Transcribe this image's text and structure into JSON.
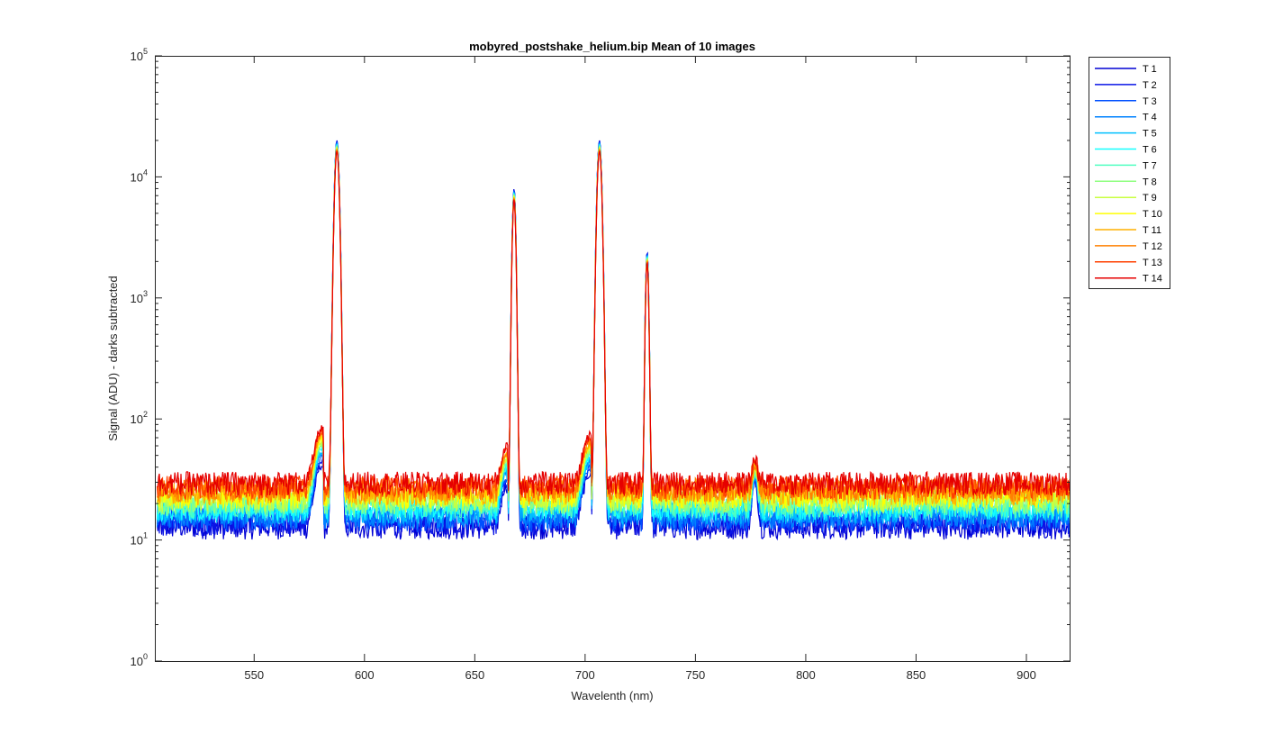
{
  "chart_data": {
    "type": "line",
    "title": "mobyred_postshake_helium.bip  Mean of 10 images",
    "xlabel": "Wavelenth (nm)",
    "ylabel": "Signal (ADU) - darks subtracted",
    "xlim": [
      505,
      920
    ],
    "ylim": [
      1,
      100000
    ],
    "yscale": "log",
    "grid": false,
    "legend_position": "outside-right",
    "x_ticks": [
      550,
      600,
      650,
      700,
      750,
      800,
      850,
      900
    ],
    "y_ticks": [
      {
        "value": 1,
        "base": "10",
        "exp": "0"
      },
      {
        "value": 10,
        "base": "10",
        "exp": "1"
      },
      {
        "value": 100,
        "base": "10",
        "exp": "2"
      },
      {
        "value": 1000,
        "base": "10",
        "exp": "3"
      },
      {
        "value": 10000,
        "base": "10",
        "exp": "4"
      },
      {
        "value": 100000,
        "base": "10",
        "exp": "5"
      }
    ],
    "peaks": [
      {
        "wavelength": 587.5,
        "height": 20000,
        "width": 1.2
      },
      {
        "wavelength": 667.8,
        "height": 8000,
        "width": 0.9
      },
      {
        "wavelength": 706.5,
        "height": 20000,
        "width": 1.2
      },
      {
        "wavelength": 728.1,
        "height": 2400,
        "width": 0.8
      },
      {
        "wavelength": 777.0,
        "height": 18,
        "width": 1.5
      }
    ],
    "series": [
      {
        "name": "T 1",
        "color": "#0000d4",
        "baseline": 13
      },
      {
        "name": "T 2",
        "color": "#0a14e6",
        "baseline": 14
      },
      {
        "name": "T 3",
        "color": "#0050ff",
        "baseline": 15
      },
      {
        "name": "T 4",
        "color": "#0082ff",
        "baseline": 16
      },
      {
        "name": "T 5",
        "color": "#00c0ff",
        "baseline": 17.5
      },
      {
        "name": "T 6",
        "color": "#14ffff",
        "baseline": 18.5
      },
      {
        "name": "T 7",
        "color": "#50ffc0",
        "baseline": 19.5
      },
      {
        "name": "T 8",
        "color": "#90ff80",
        "baseline": 21
      },
      {
        "name": "T 9",
        "color": "#c8ff40",
        "baseline": 22
      },
      {
        "name": "T 10",
        "color": "#ffff00",
        "baseline": 23.5
      },
      {
        "name": "T 11",
        "color": "#ffb000",
        "baseline": 25
      },
      {
        "name": "T 12",
        "color": "#ff8000",
        "baseline": 26.5
      },
      {
        "name": "T 13",
        "color": "#ff4000",
        "baseline": 28
      },
      {
        "name": "T 14",
        "color": "#e60000",
        "baseline": 30
      }
    ]
  }
}
